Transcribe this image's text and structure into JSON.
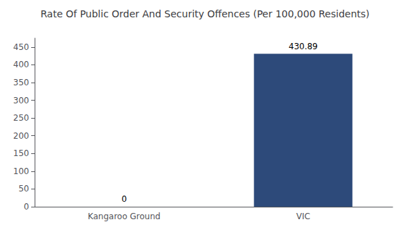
{
  "chart_data": {
    "type": "bar",
    "title": "Rate Of Public Order And Security Offences (Per 100,000 Residents)",
    "categories": [
      "Kangaroo Ground",
      "VIC"
    ],
    "values": [
      0,
      430.89
    ],
    "color": "#2d4a7a",
    "ylim": [
      0,
      475
    ],
    "yticks": [
      0,
      50,
      100,
      150,
      200,
      250,
      300,
      350,
      400,
      450
    ],
    "grid": false,
    "data_labels": true
  }
}
